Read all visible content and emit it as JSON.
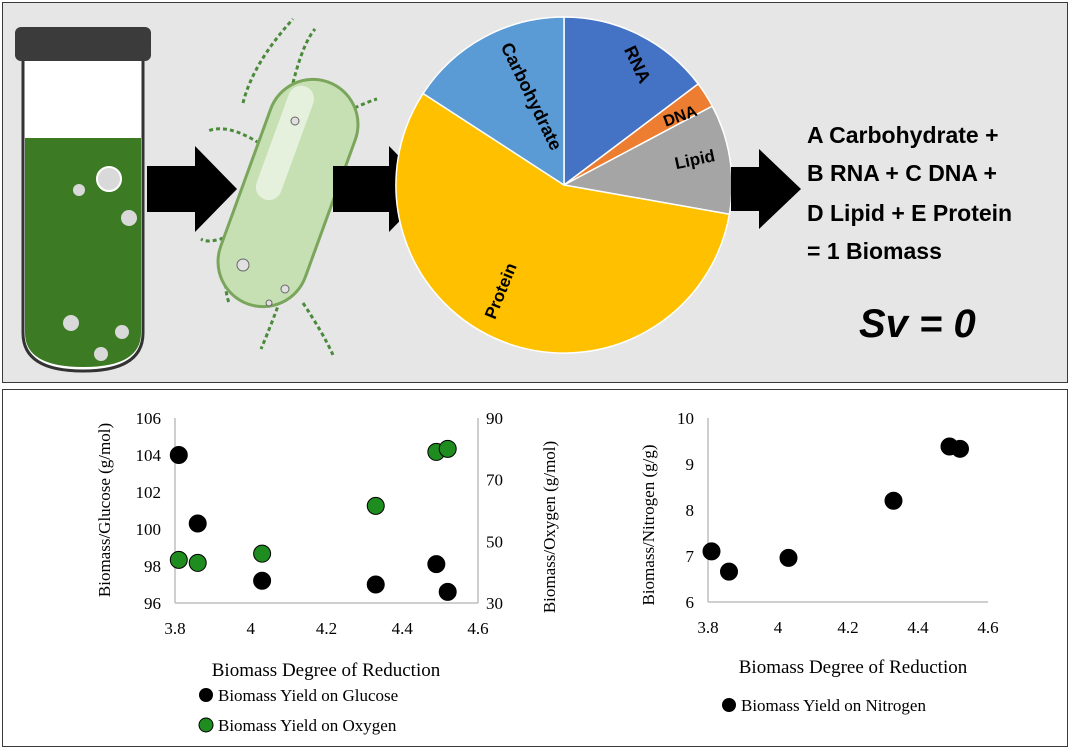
{
  "pie": {
    "labels": {
      "carbohydrate": "Carbohydrate",
      "rna": "RNA",
      "dna": "DNA",
      "lipid": "Lipid",
      "protein": "Protein"
    },
    "colors": {
      "carbohydrate": "#5b9bd5",
      "rna": "#4472c4",
      "dna": "#ed7d31",
      "lipid": "#a5a5a5",
      "protein": "#ffc000"
    }
  },
  "equation": {
    "line1": "A Carbohydrate +",
    "line2": "B RNA + C DNA +",
    "line3": "D Lipid + E Protein",
    "line4": "= 1 Biomass",
    "sv": "Sv = 0"
  },
  "colors": {
    "tube_liquid": "#3c7a23",
    "bacterium": "#c6e0b4",
    "arrow": "#000000",
    "glucose_marker": "#000000",
    "oxygen_marker": "#1e8c1e"
  },
  "chart_data": [
    {
      "type": "scatter",
      "title": "",
      "xlabel": "Biomass Degree of Reduction",
      "ylabel": "Biomass/Glucose (g/mol)",
      "y2label": "Biomass/Oxygen (g/mol)",
      "xlim": [
        3.8,
        4.6
      ],
      "ylim": [
        96,
        106
      ],
      "y2lim": [
        30,
        90
      ],
      "xticks": [
        "3.8",
        "4",
        "4.2",
        "4.4",
        "4.6"
      ],
      "yticks": [
        "96",
        "98",
        "100",
        "102",
        "104",
        "106"
      ],
      "y2ticks": [
        "30",
        "50",
        "70",
        "90"
      ],
      "legend_position": "bottom",
      "series": [
        {
          "name": "Biomass Yield on Glucose",
          "axis": "left",
          "color": "#000000",
          "x": [
            3.81,
            3.86,
            4.03,
            4.33,
            4.49,
            4.52
          ],
          "y": [
            104.0,
            100.3,
            97.2,
            97.0,
            98.1,
            96.6
          ]
        },
        {
          "name": "Biomass Yield on Oxygen",
          "axis": "right",
          "color": "#1e8c1e",
          "x": [
            3.81,
            3.86,
            4.03,
            4.33,
            4.49,
            4.52
          ],
          "y": [
            44.0,
            43.0,
            46.0,
            61.5,
            79.0,
            80.0
          ]
        }
      ]
    },
    {
      "type": "scatter",
      "title": "",
      "xlabel": "Biomass Degree of Reduction",
      "ylabel": "Biomass/Nitrogen (g/g)",
      "xlim": [
        3.8,
        4.6
      ],
      "ylim": [
        6,
        10
      ],
      "xticks": [
        "3.8",
        "4",
        "4.2",
        "4.4",
        "4.6"
      ],
      "yticks": [
        "6",
        "7",
        "8",
        "9",
        "10"
      ],
      "legend_position": "bottom",
      "series": [
        {
          "name": "Biomass Yield on Nitrogen",
          "axis": "left",
          "color": "#000000",
          "x": [
            3.81,
            3.86,
            4.03,
            4.33,
            4.49,
            4.52
          ],
          "y": [
            7.1,
            6.66,
            6.96,
            8.2,
            9.38,
            9.33
          ]
        }
      ]
    }
  ]
}
